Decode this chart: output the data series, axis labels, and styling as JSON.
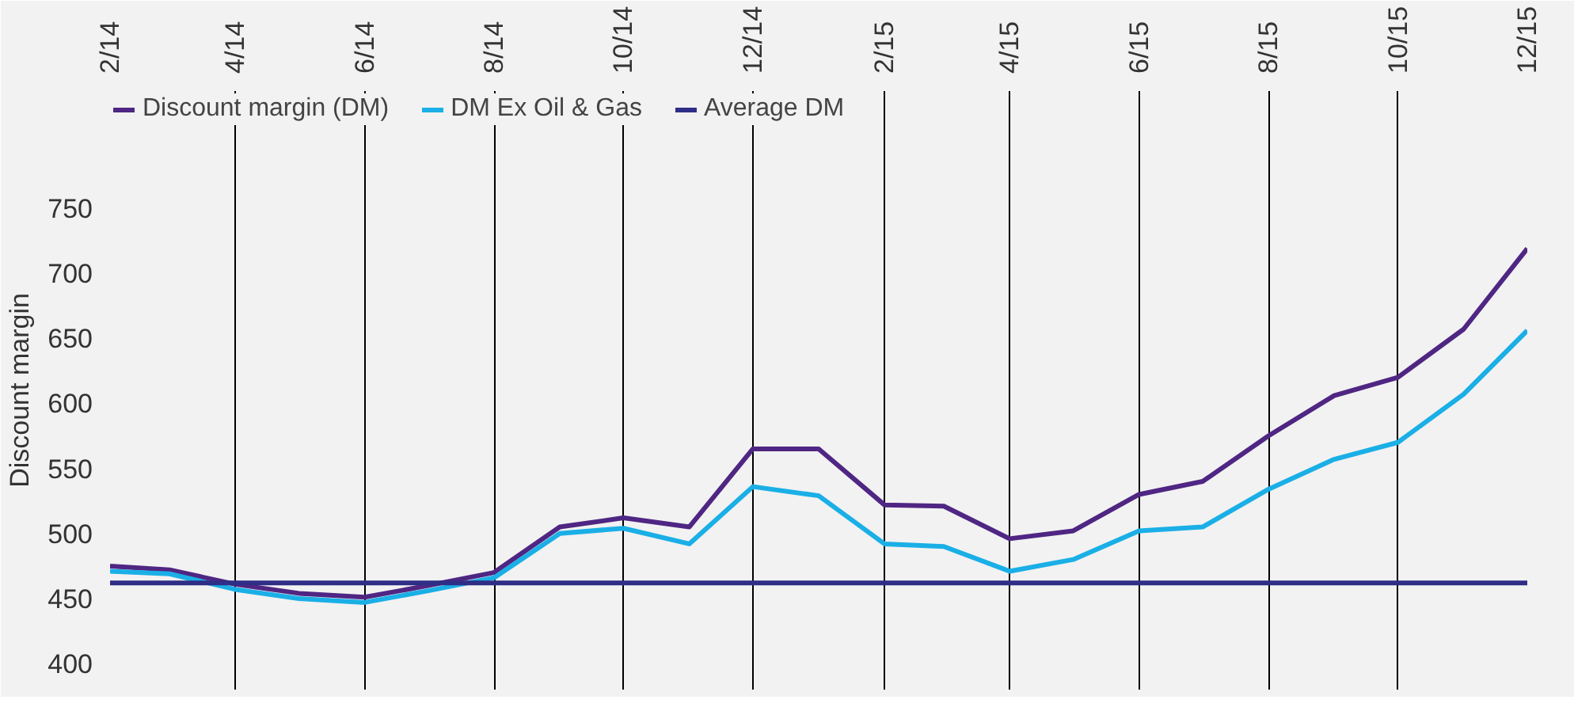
{
  "chart_data": {
    "type": "line",
    "ylabel": "Discount margin",
    "x": [
      "2014-02",
      "2014-03",
      "2014-04",
      "2014-05",
      "2014-06",
      "2014-07",
      "2014-08",
      "2014-09",
      "2014-10",
      "2014-11",
      "2014-12",
      "2015-01",
      "2015-02",
      "2015-03",
      "2015-04",
      "2015-05",
      "2015-06",
      "2015-07",
      "2015-08",
      "2015-09",
      "2015-10",
      "2015-11",
      "2015-12"
    ],
    "series": [
      {
        "name": "Discount margin (DM)",
        "color": "#4f2683",
        "values": [
          475,
          472,
          461,
          454,
          451,
          460,
          470,
          505,
          512,
          505,
          565,
          565,
          522,
          521,
          496,
          502,
          530,
          540,
          575,
          606,
          620,
          657,
          719
        ]
      },
      {
        "name": "DM Ex Oil & Gas",
        "color": "#1aafe6",
        "values": [
          471,
          469,
          457,
          450,
          447,
          456,
          466,
          500,
          504,
          492,
          536,
          529,
          492,
          490,
          471,
          480,
          502,
          505,
          534,
          557,
          570,
          607,
          656
        ]
      },
      {
        "name": "Average DM",
        "color": "#2e2e86",
        "values": [
          462,
          462,
          462,
          462,
          462,
          462,
          462,
          462,
          462,
          462,
          462,
          462,
          462,
          462,
          462,
          462,
          462,
          462,
          462,
          462,
          462,
          462,
          462
        ]
      }
    ],
    "xlim": [
      "2014-02",
      "2015-12"
    ],
    "xticks": [
      {
        "value": "2014-02",
        "label": "2/14"
      },
      {
        "value": "2014-04",
        "label": "4/14"
      },
      {
        "value": "2014-06",
        "label": "6/14"
      },
      {
        "value": "2014-08",
        "label": "8/14"
      },
      {
        "value": "2014-10",
        "label": "10/14"
      },
      {
        "value": "2014-12",
        "label": "12/14"
      },
      {
        "value": "2015-02",
        "label": "2/15"
      },
      {
        "value": "2015-04",
        "label": "4/15"
      },
      {
        "value": "2015-06",
        "label": "6/15"
      },
      {
        "value": "2015-08",
        "label": "8/15"
      },
      {
        "value": "2015-10",
        "label": "10/15"
      },
      {
        "value": "2015-12",
        "label": "12/15"
      }
    ],
    "ylim": [
      380,
      840
    ],
    "yticks": [
      400,
      450,
      500,
      550,
      600,
      650,
      700,
      750
    ],
    "grid": "x",
    "legend": "top",
    "line_style": "solid",
    "marker": "none"
  }
}
